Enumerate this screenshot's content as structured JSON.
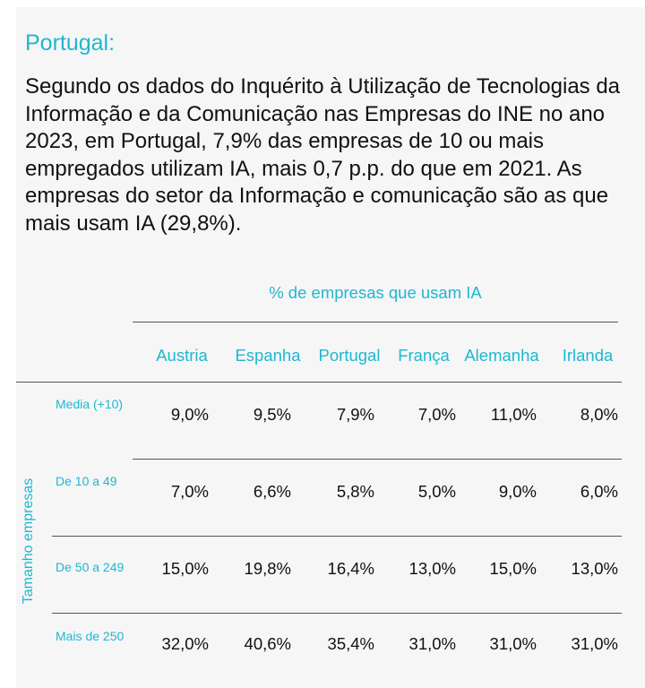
{
  "heading": "Portugal:",
  "paragraph": "Segundo os dados do Inquérito à Utilização de Tecnologias da Informação e da Comunicação nas Empresas do INE no ano 2023, em Portugal, 7,9% das empresas de 10 ou mais empregados utilizam IA, mais 0,7 p.p. do que em 2021. As empresas do setor da Informação e comunicação são as que mais usam IA (29,8%).",
  "table": {
    "title": "% de empresas que usam IA",
    "side_label": "Tamanho  empresas",
    "columns": [
      "Austria",
      "Espanha",
      "Portugal",
      "França",
      "Alemanha",
      "Irlanda"
    ],
    "rows": [
      {
        "label": "Media (+10)",
        "values": [
          "9,0%",
          "9,5%",
          "7,9%",
          "7,0%",
          "11,0%",
          "8,0%"
        ]
      },
      {
        "label": "De 10 a 49",
        "values": [
          "7,0%",
          "6,6%",
          "5,8%",
          "5,0%",
          "9,0%",
          "6,0%"
        ]
      },
      {
        "label": "De 50 a 249",
        "values": [
          "15,0%",
          "19,8%",
          "16,4%",
          "13,0%",
          "15,0%",
          "13,0%"
        ]
      },
      {
        "label": "Mais de 250",
        "values": [
          "32,0%",
          "40,6%",
          "35,4%",
          "31,0%",
          "31,0%",
          "31,0%"
        ]
      }
    ]
  },
  "colors": {
    "accent": "#1fb7cf",
    "text": "#111111",
    "panel": "#f6f6f7"
  }
}
